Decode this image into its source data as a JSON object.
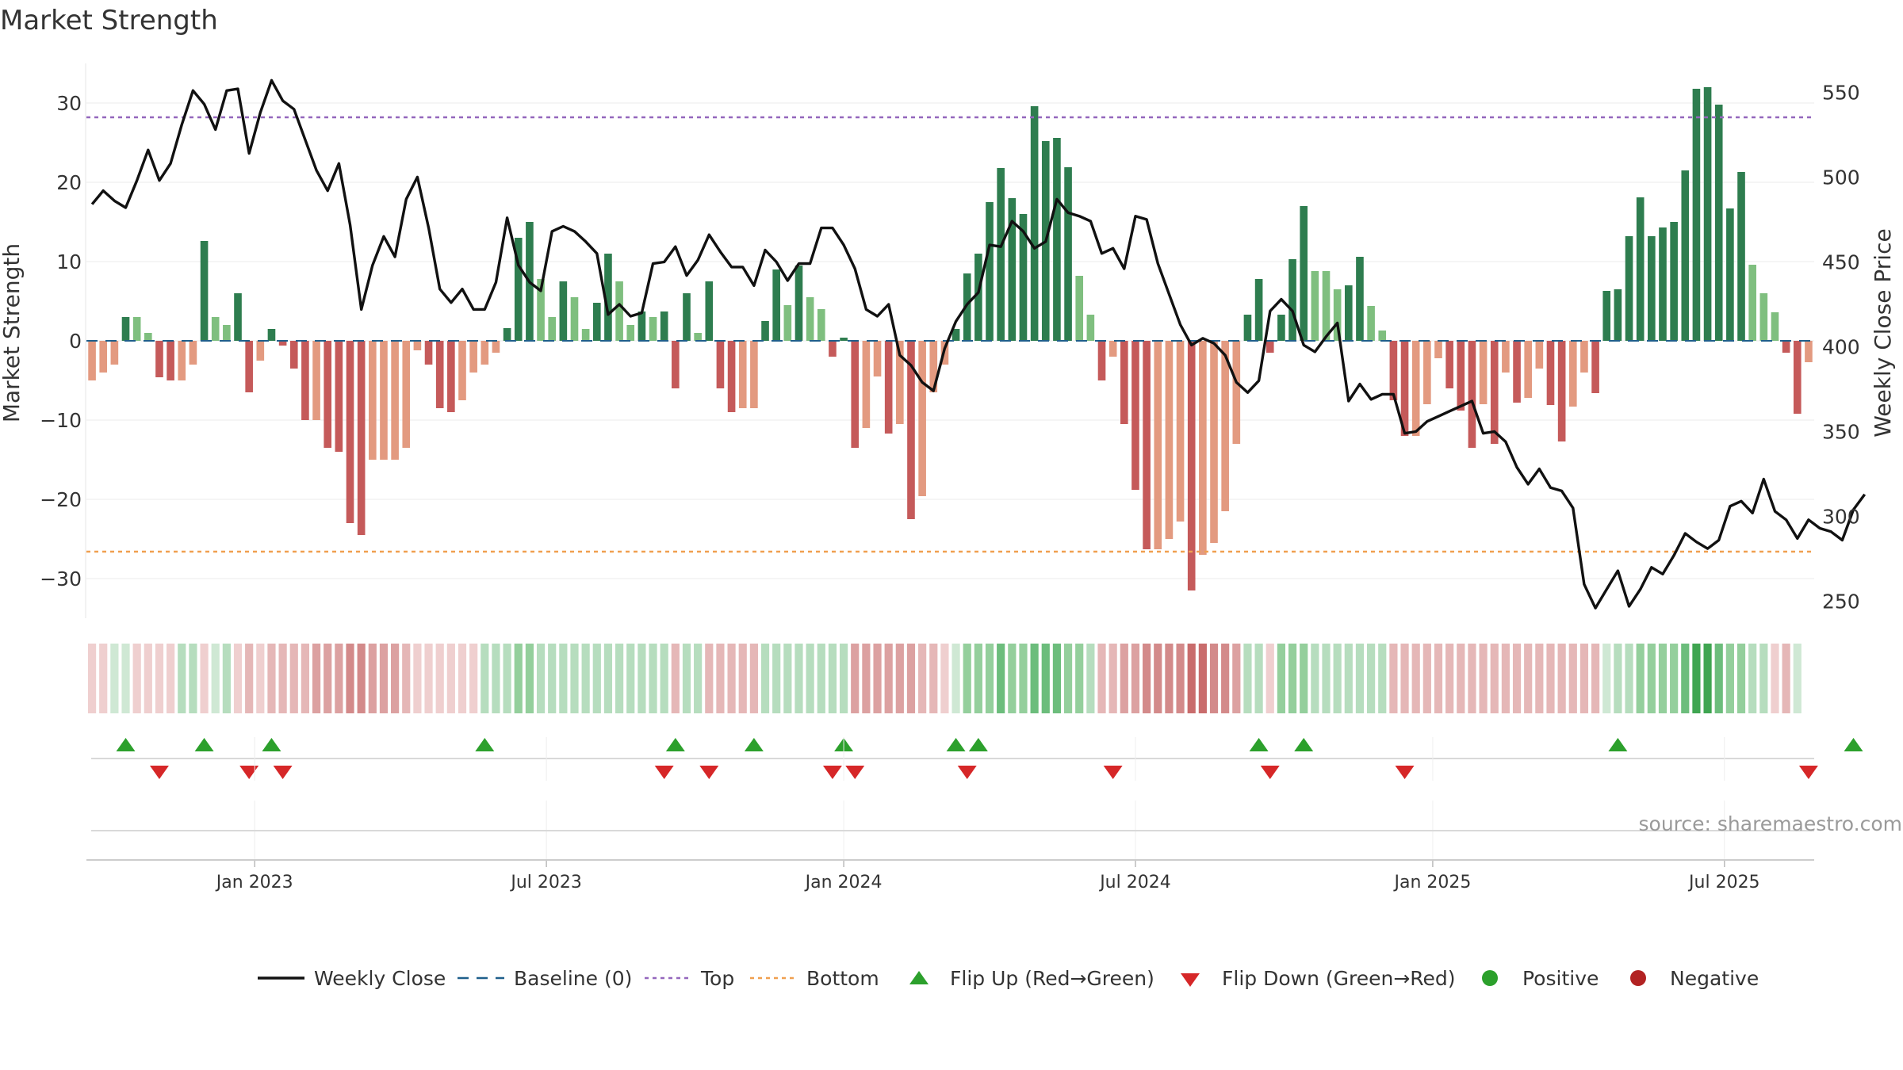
{
  "chart_data": {
    "type": "bar",
    "title": "Market Strength",
    "ylabel_left": "Market Strength",
    "ylabel_right": "Weekly Close Price",
    "source": "source: sharemaestro.com",
    "left_ticks": [
      30,
      20,
      10,
      0,
      -10,
      -20,
      -30
    ],
    "left_tick_labels": [
      "30",
      "20",
      "10",
      "0",
      "−10",
      "−20",
      "−30"
    ],
    "right_ticks": [
      550,
      500,
      450,
      400,
      350,
      300,
      250
    ],
    "right_tick_labels": [
      "550",
      "500",
      "450",
      "400",
      "350",
      "300",
      "250"
    ],
    "ylim_left": [
      -35,
      35
    ],
    "ylim_right": [
      240,
      567
    ],
    "top_line": 28.2,
    "bottom_line": -26.6,
    "x_week_range": [
      0,
      158
    ],
    "x_ticks": [
      {
        "week": 14.5,
        "label": "Jan 2023"
      },
      {
        "week": 40.5,
        "label": "Jul 2023"
      },
      {
        "week": 67,
        "label": "Jan 2024"
      },
      {
        "week": 93,
        "label": "Jul 2024"
      },
      {
        "week": 119.5,
        "label": "Jan 2025"
      },
      {
        "week": 145.5,
        "label": "Jul 2025"
      }
    ],
    "strength": [
      -5,
      -4,
      -3,
      3,
      3,
      1,
      -4.6,
      -5,
      -5,
      -3,
      12.6,
      3,
      2,
      6,
      -6.5,
      -2.5,
      1.5,
      -0.6,
      -3.5,
      -10,
      -10,
      -13.5,
      -14,
      -23,
      -24.5,
      -15,
      -15,
      -15,
      -13.5,
      -1.2,
      -3,
      -8.5,
      -9,
      -7.5,
      -4,
      -3,
      -1.5,
      1.6,
      13,
      15,
      7.8,
      3,
      7.5,
      5.5,
      1.5,
      4.8,
      11,
      7.5,
      2,
      3.7,
      3,
      3.7,
      -6,
      6,
      1,
      7.5,
      -6,
      -9,
      -8.5,
      -8.5,
      2.5,
      9,
      4.5,
      9.5,
      5.5,
      4,
      -2,
      0.4,
      -13.5,
      -11,
      -4.5,
      -11.7,
      -10.5,
      -22.5,
      -19.6,
      -6.5,
      -3,
      1.5,
      8.5,
      11,
      17.5,
      21.8,
      18,
      16,
      29.6,
      25.2,
      25.6,
      21.9,
      8.2,
      3.3,
      -5,
      -2,
      -10.5,
      -18.8,
      -26.3,
      -26.3,
      -25,
      -22.8,
      -31.5,
      -27,
      -25.5,
      -21.5,
      -13,
      3.3,
      7.8,
      -1.5,
      3.3,
      10.3,
      17,
      8.8,
      8.8,
      6.5,
      7,
      10.6,
      4.4,
      1.3,
      -7.5,
      -12,
      -12,
      -8,
      -2.2,
      -6,
      -8.8,
      -13.5,
      -8,
      -13,
      -4,
      -7.8,
      -7.2,
      -3.5,
      -8.1,
      -12.7,
      -8.3,
      -4,
      -6.6,
      6.3,
      6.5,
      13.2,
      18.1,
      13.2,
      14.3,
      15,
      21.5,
      31.8,
      32,
      29.8,
      16.7,
      21.3,
      9.6,
      6,
      3.6,
      -1.5,
      -9.2,
      -2.7
    ],
    "close": [
      484,
      492,
      486,
      482,
      498,
      516,
      498,
      508,
      531,
      551,
      543,
      528,
      551,
      552,
      514,
      538,
      557,
      545,
      540,
      522,
      504,
      492,
      508,
      472,
      422,
      448,
      465,
      453,
      487,
      500,
      470,
      434,
      426,
      434,
      422,
      422,
      438,
      476,
      448,
      438,
      433,
      468,
      471,
      468,
      462,
      455,
      419,
      425,
      418,
      420,
      449,
      450,
      459,
      442,
      451,
      466,
      456,
      447,
      447,
      436,
      457,
      450,
      439,
      449,
      449,
      470,
      470,
      460,
      446,
      422,
      418,
      425,
      395,
      389,
      379,
      374,
      399,
      415,
      425,
      432,
      460,
      459,
      474,
      468,
      458,
      462,
      487,
      479,
      477,
      474,
      455,
      458,
      446,
      477,
      475,
      449,
      431,
      413,
      401,
      405,
      402,
      395,
      379,
      373,
      380,
      421,
      428,
      421,
      401,
      397,
      406,
      414,
      368,
      378,
      369,
      372,
      372,
      349,
      350,
      356,
      359,
      362,
      365,
      368,
      349,
      350,
      344,
      329,
      319,
      328,
      317,
      315,
      305,
      260,
      246,
      257,
      268,
      247,
      257,
      270,
      266,
      277,
      290,
      285,
      281,
      286,
      306,
      309,
      302,
      322,
      303,
      298,
      287,
      298,
      293,
      291,
      286,
      304,
      313
    ],
    "strip_values": [
      -1,
      -1,
      1,
      1,
      -1,
      -1,
      -1,
      -1,
      2,
      2,
      -1,
      1,
      2,
      -1,
      -2,
      -1,
      -2,
      -2,
      -2,
      -2,
      -3,
      -3,
      -3,
      -4,
      -4,
      -3,
      -3,
      -3,
      -2,
      -1,
      -1,
      -1,
      -1,
      -1,
      -1,
      2,
      2,
      2,
      3,
      3,
      2,
      2,
      2,
      2,
      2,
      2,
      2,
      2,
      2,
      2,
      2,
      2,
      -2,
      2,
      2,
      -2,
      -2,
      -2,
      -2,
      -2,
      2,
      2,
      2,
      2,
      2,
      2,
      2,
      2,
      -3,
      -3,
      -3,
      -3,
      -3,
      -3,
      -2,
      -2,
      -1,
      1,
      3,
      3,
      3,
      4,
      3,
      3,
      4,
      4,
      4,
      3,
      3,
      2,
      -2,
      -2,
      -3,
      -3,
      -4,
      -4,
      -4,
      -4,
      -5,
      -5,
      -4,
      -4,
      -3,
      2,
      2,
      -1,
      3,
      3,
      3,
      2,
      2,
      2,
      2,
      2,
      2,
      2,
      -2,
      -2,
      -2,
      -2,
      -2,
      -2,
      -2,
      -2,
      -2,
      -2,
      -2,
      -2,
      -2,
      -2,
      -2,
      -2,
      -2,
      -2,
      -2,
      1,
      2,
      2,
      3,
      3,
      3,
      3,
      4,
      5,
      5,
      4,
      3,
      3,
      2,
      2,
      -1,
      -2,
      1
    ],
    "flip_up_weeks": [
      3,
      10,
      16,
      35,
      52,
      59,
      67,
      77,
      79,
      104,
      108,
      136,
      157
    ],
    "flip_down_weeks": [
      6,
      14,
      17,
      51,
      55,
      66,
      68,
      78,
      91,
      105,
      117,
      153
    ],
    "colors": {
      "pos_strong": "#2e7d4f",
      "pos_light": "#7fbf7f",
      "neg_strong": "#c55a5a",
      "neg_light": "#e39a80",
      "close_line": "#111111",
      "baseline": "#1f5f8b",
      "top_line": "#9467bd",
      "bottom_line": "#f0a050",
      "flip_up": "#2ca02c",
      "flip_down": "#d62728",
      "positive": "#2ca02c",
      "negative": "#b22222"
    },
    "legend": {
      "weekly_close": "Weekly Close",
      "baseline": "Baseline (0)",
      "top": "Top",
      "bottom": "Bottom",
      "flip_up": "Flip Up (Red→Green)",
      "flip_down": "Flip Down (Green→Red)",
      "positive": "Positive",
      "negative": "Negative"
    },
    "legend_position": "bottom-center"
  }
}
